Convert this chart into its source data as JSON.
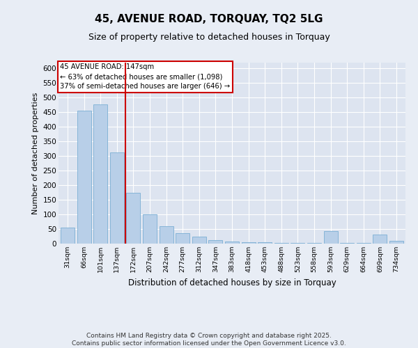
{
  "title": "45, AVENUE ROAD, TORQUAY, TQ2 5LG",
  "subtitle": "Size of property relative to detached houses in Torquay",
  "xlabel": "Distribution of detached houses by size in Torquay",
  "ylabel": "Number of detached properties",
  "bar_labels": [
    "31sqm",
    "66sqm",
    "101sqm",
    "137sqm",
    "172sqm",
    "207sqm",
    "242sqm",
    "277sqm",
    "312sqm",
    "347sqm",
    "383sqm",
    "418sqm",
    "453sqm",
    "488sqm",
    "523sqm",
    "558sqm",
    "593sqm",
    "629sqm",
    "664sqm",
    "699sqm",
    "734sqm"
  ],
  "bar_values": [
    54,
    456,
    478,
    312,
    173,
    100,
    60,
    35,
    25,
    12,
    8,
    5,
    4,
    3,
    3,
    2,
    42,
    2,
    2,
    30,
    10
  ],
  "bar_color": "#b8cfe8",
  "bar_edgecolor": "#7aafd4",
  "annotation_box_text": "45 AVENUE ROAD: 147sqm\n← 63% of detached houses are smaller (1,098)\n37% of semi-detached houses are larger (646) →",
  "red_line_x": 3.5,
  "annotation_box_color": "#cc0000",
  "background_color": "#e8edf5",
  "plot_background": "#dde4f0",
  "footer_text": "Contains HM Land Registry data © Crown copyright and database right 2025.\nContains public sector information licensed under the Open Government Licence v3.0.",
  "ylim": [
    0,
    620
  ],
  "yticks": [
    0,
    50,
    100,
    150,
    200,
    250,
    300,
    350,
    400,
    450,
    500,
    550,
    600
  ],
  "figsize": [
    6.0,
    5.0
  ],
  "dpi": 100
}
